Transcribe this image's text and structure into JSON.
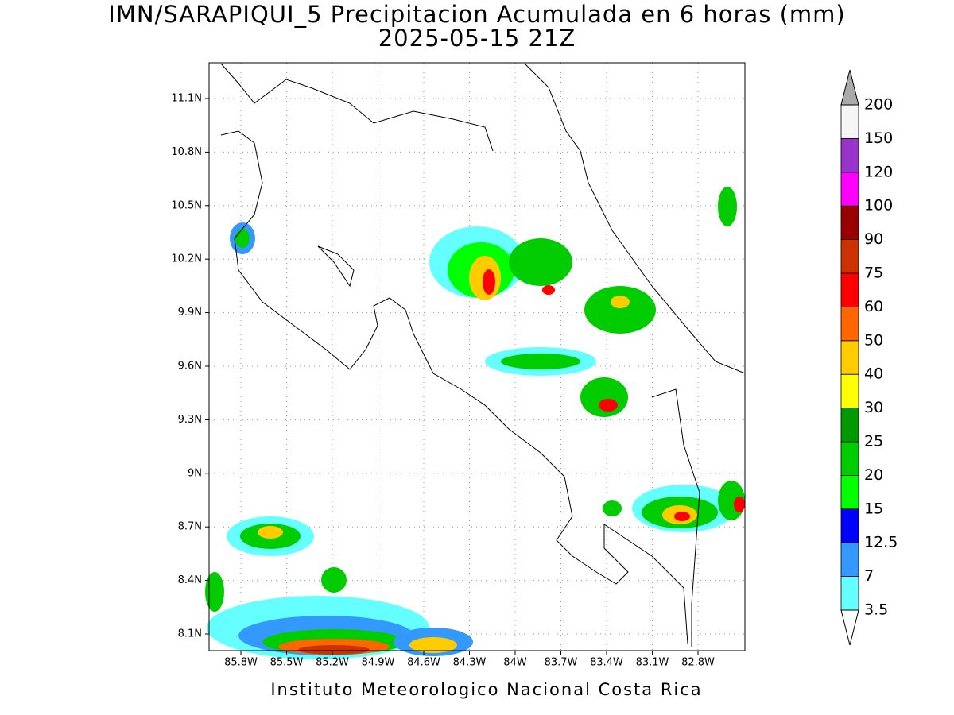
{
  "title": "IMN/SARAPIQUI_5 Precipitacion Acumulada en 6 horas (mm)",
  "subtitle": "2025-05-15 21Z",
  "map": {
    "lon_ticks": [
      "85.8W",
      "85.5W",
      "85.2W",
      "84.9W",
      "84.6W",
      "84.3W",
      "84W",
      "83.7W",
      "83.4W",
      "83.1W",
      "82.8W"
    ],
    "lat_ticks": [
      "11.1N",
      "10.8N",
      "10.5N",
      "10.2N",
      "9.9N",
      "9.6N",
      "9.3N",
      "9N",
      "8.7N",
      "8.4N",
      "8.1N"
    ]
  },
  "colorbar": {
    "levels": [
      3.5,
      7,
      12.5,
      15,
      20,
      25,
      30,
      40,
      50,
      60,
      75,
      90,
      100,
      120,
      150,
      200
    ],
    "colors": [
      "#66ffff",
      "#3399ff",
      "#0000ff",
      "#00ff00",
      "#00cc00",
      "#009900",
      "#ffff00",
      "#ffcc00",
      "#ff6600",
      "#ff0000",
      "#cc3300",
      "#990000",
      "#ff00ff",
      "#9933cc",
      "#f5f5f5"
    ],
    "above_color": "#aaaaaa",
    "below_color": "#ffffff"
  },
  "footer": "Instituto Meteorologico Nacional Costa Rica"
}
